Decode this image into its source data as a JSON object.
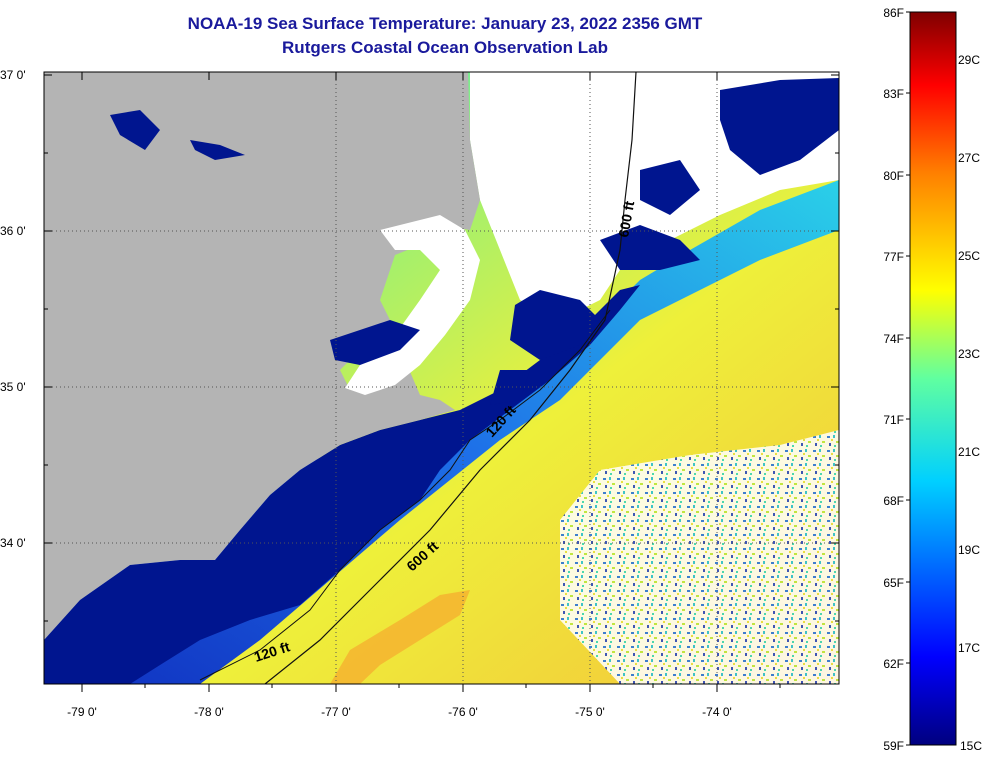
{
  "title": {
    "line1": "NOAA-19 Sea Surface Temperature:  January 23, 2022 2356 GMT",
    "line2": "Rutgers Coastal Ocean Observation Lab"
  },
  "map": {
    "lat_labels": [
      "37 0'",
      "36 0'",
      "35 0'",
      "34 0'"
    ],
    "lon_labels": [
      "-79 0'",
      "-78 0'",
      "-77 0'",
      "-76 0'",
      "-75 0'",
      "-74 0'"
    ],
    "contour_labels": [
      "600 ft",
      "120 ft",
      "600 ft",
      "120 ft"
    ],
    "colors": {
      "land": "#b4b4b4",
      "cloud": "#ffffff",
      "cold_water": "#00158f"
    }
  },
  "colorbar": {
    "fahrenheit_labels": [
      "86F",
      "83F",
      "80F",
      "77F",
      "74F",
      "71F",
      "68F",
      "65F",
      "62F",
      "59F"
    ],
    "celsius_labels": [
      "29C",
      "27C",
      "25C",
      "23C",
      "21C",
      "19C",
      "17C",
      "15C"
    ]
  }
}
